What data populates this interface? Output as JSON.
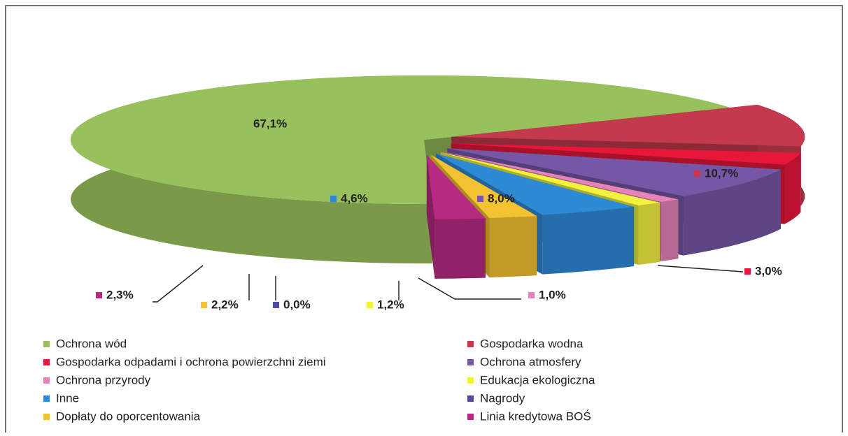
{
  "chart_data": {
    "type": "pie3d",
    "categories": [
      "Ochrona wód",
      "Gospodarka wodna",
      "Gospodarka odpadami i ochrona  powierzchni ziemi",
      "Ochrona atmosfery",
      "Ochrona przyrody",
      "Edukacja ekologiczna",
      "Inne",
      "Nagrody",
      "Dopłaty do oporcentowania",
      "Linia kredytowa BOŚ"
    ],
    "values": [
      67.1,
      10.7,
      3.0,
      8.0,
      1.0,
      1.2,
      4.6,
      0.0,
      2.2,
      2.3
    ],
    "value_labels": [
      "67,1%",
      "10,7%",
      "3,0%",
      "8,0%",
      "1,0%",
      "1,2%",
      "4,6%",
      "0,0%",
      "2,2%",
      "2,3%"
    ],
    "colors": [
      "#98c05c",
      "#c23a4c",
      "#e8173a",
      "#7657a6",
      "#e683b8",
      "#f2f23e",
      "#2f8ad6",
      "#4e4aa0",
      "#f2c230",
      "#b72a82"
    ],
    "legend": "bottom"
  }
}
